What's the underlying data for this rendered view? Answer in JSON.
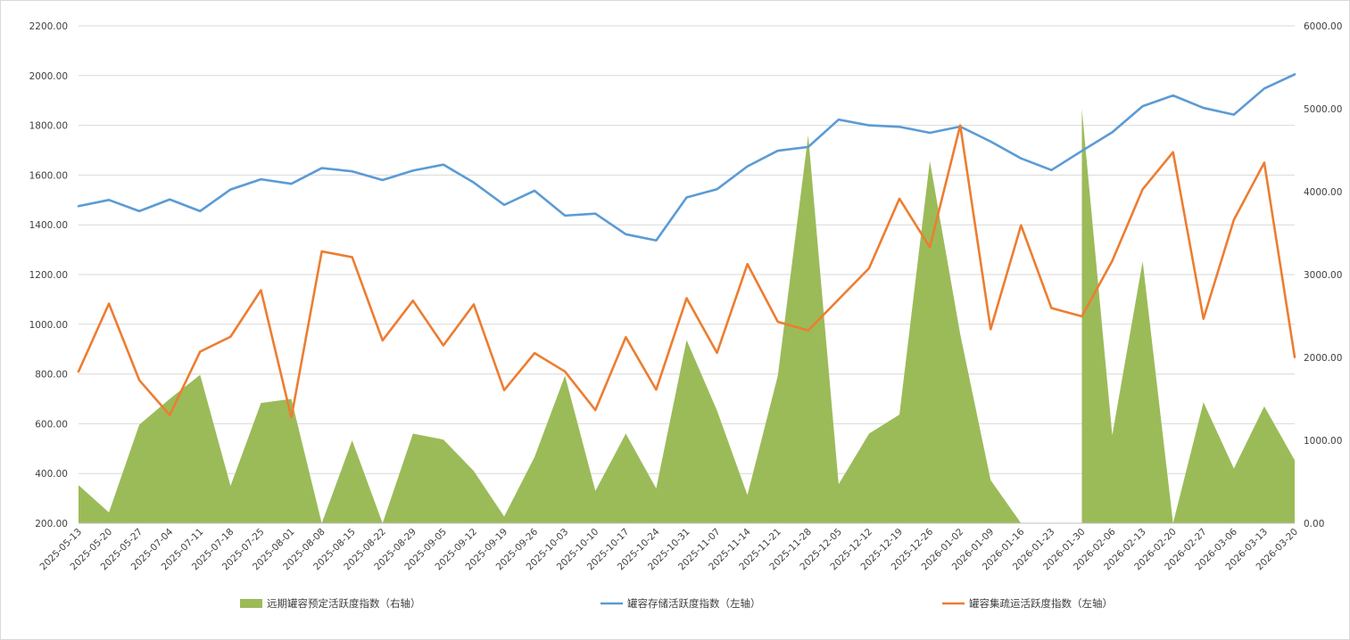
{
  "chart_data": {
    "type": "line",
    "categories": [
      "2025-05-13",
      "2025-05-20",
      "2025-05-27",
      "2025-07-04",
      "2025-07-11",
      "2025-07-18",
      "2025-07-25",
      "2025-08-01",
      "2025-08-08",
      "2025-08-15",
      "2025-08-22",
      "2025-08-29",
      "2025-09-05",
      "2025-09-12",
      "2025-09-19",
      "2025-09-26",
      "2025-10-03",
      "2025-10-10",
      "2025-10-17",
      "2025-10-24",
      "2025-10-31",
      "2025-11-07",
      "2025-11-14",
      "2025-11-21",
      "2025-11-28",
      "2025-12-05",
      "2025-12-12",
      "2025-12-19",
      "2025-12-26",
      "2026-01-02",
      "2026-01-09",
      "2026-01-16",
      "2026-01-23",
      "2026-01-30",
      "2026-02-06",
      "2026-02-13",
      "2026-02-20",
      "2026-02-27",
      "2026-03-06",
      "2026-03-13",
      "2026-03-20"
    ],
    "series": [
      {
        "name": "远期罐容预定活跃度指数（右轴）",
        "type": "area",
        "axis": "right",
        "color": "#9bbb59",
        "values": [
          460,
          130,
          1190,
          1500,
          1790,
          450,
          1450,
          1500,
          0,
          1000,
          0,
          1080,
          1010,
          630,
          80,
          800,
          1780,
          390,
          1080,
          420,
          2210,
          1360,
          340,
          1780,
          4680,
          470,
          1080,
          1310,
          4370,
          2280,
          520,
          0,
          null,
          5000,
          1060,
          3160,
          0,
          1460,
          660,
          1410,
          760
        ]
      },
      {
        "name": "罐容存储活跃度指数（左轴）",
        "type": "line",
        "axis": "left",
        "color": "#5b9bd5",
        "values": [
          1475,
          1500,
          1455,
          1502,
          1455,
          1542,
          1583,
          1565,
          1628,
          1615,
          1580,
          1618,
          1642,
          1570,
          1480,
          1537,
          1437,
          1445,
          1362,
          1337,
          1510,
          1543,
          1635,
          1698,
          1713,
          1823,
          1800,
          1794,
          1770,
          1795,
          1735,
          1667,
          1620,
          1697,
          1772,
          1877,
          1920,
          1870,
          1843,
          1948,
          2005
        ]
      },
      {
        "name": "罐容集疏运活跃度指数（左轴）",
        "type": "line",
        "axis": "left",
        "color": "#ed7d31",
        "values": [
          810,
          1083,
          775,
          635,
          890,
          950,
          1137,
          625,
          1293,
          1270,
          935,
          1095,
          915,
          1080,
          735,
          884,
          810,
          655,
          948,
          737,
          1105,
          885,
          1242,
          1010,
          975,
          1100,
          1225,
          1505,
          1310,
          1800,
          980,
          1398,
          1065,
          1032,
          1255,
          1543,
          1692,
          1022,
          1420,
          1650,
          868
        ]
      }
    ],
    "yLeft": {
      "min": 200,
      "max": 2200,
      "step": 200,
      "ticks": [
        "200.00",
        "400.00",
        "600.00",
        "800.00",
        "1000.00",
        "1200.00",
        "1400.00",
        "1600.00",
        "1800.00",
        "2000.00",
        "2200.00"
      ]
    },
    "yRight": {
      "min": 0,
      "max": 6000,
      "step": 1000,
      "ticks": [
        "0.00",
        "1000.00",
        "2000.00",
        "3000.00",
        "4000.00",
        "5000.00",
        "6000.00"
      ]
    },
    "grid": true,
    "legend": "bottom"
  }
}
